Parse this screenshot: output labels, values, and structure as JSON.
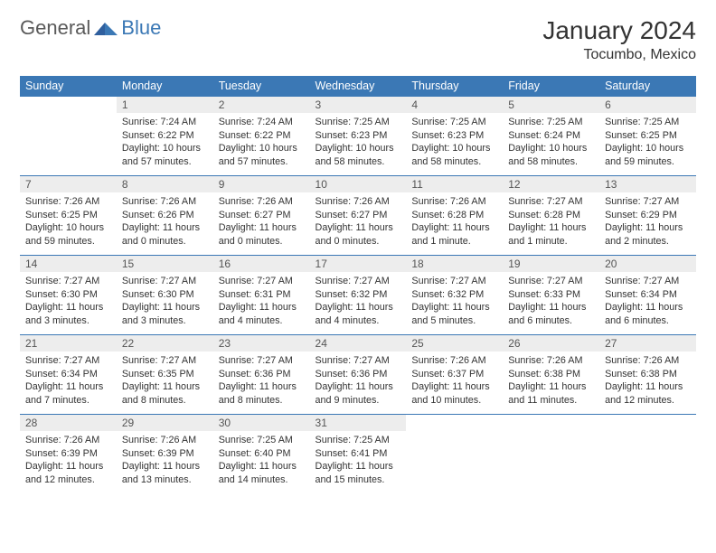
{
  "brand": {
    "text1": "General",
    "text2": "Blue"
  },
  "title": "January 2024",
  "location": "Tocumbo, Mexico",
  "colors": {
    "header_bg": "#3b78b5",
    "header_text": "#ffffff",
    "daynum_bg": "#ededed",
    "daynum_text": "#555555",
    "body_text": "#333333",
    "rule": "#3b78b5",
    "brand_gray": "#5a5a5a",
    "brand_blue": "#3b78b5"
  },
  "fonts": {
    "title_size": 28,
    "location_size": 16,
    "header_size": 12.5,
    "daynum_size": 12,
    "body_size": 10.8
  },
  "weekdays": [
    "Sunday",
    "Monday",
    "Tuesday",
    "Wednesday",
    "Thursday",
    "Friday",
    "Saturday"
  ],
  "weeks": [
    [
      null,
      {
        "n": "1",
        "sr": "7:24 AM",
        "ss": "6:22 PM",
        "dl": "10 hours and 57 minutes."
      },
      {
        "n": "2",
        "sr": "7:24 AM",
        "ss": "6:22 PM",
        "dl": "10 hours and 57 minutes."
      },
      {
        "n": "3",
        "sr": "7:25 AM",
        "ss": "6:23 PM",
        "dl": "10 hours and 58 minutes."
      },
      {
        "n": "4",
        "sr": "7:25 AM",
        "ss": "6:23 PM",
        "dl": "10 hours and 58 minutes."
      },
      {
        "n": "5",
        "sr": "7:25 AM",
        "ss": "6:24 PM",
        "dl": "10 hours and 58 minutes."
      },
      {
        "n": "6",
        "sr": "7:25 AM",
        "ss": "6:25 PM",
        "dl": "10 hours and 59 minutes."
      }
    ],
    [
      {
        "n": "7",
        "sr": "7:26 AM",
        "ss": "6:25 PM",
        "dl": "10 hours and 59 minutes."
      },
      {
        "n": "8",
        "sr": "7:26 AM",
        "ss": "6:26 PM",
        "dl": "11 hours and 0 minutes."
      },
      {
        "n": "9",
        "sr": "7:26 AM",
        "ss": "6:27 PM",
        "dl": "11 hours and 0 minutes."
      },
      {
        "n": "10",
        "sr": "7:26 AM",
        "ss": "6:27 PM",
        "dl": "11 hours and 0 minutes."
      },
      {
        "n": "11",
        "sr": "7:26 AM",
        "ss": "6:28 PM",
        "dl": "11 hours and 1 minute."
      },
      {
        "n": "12",
        "sr": "7:27 AM",
        "ss": "6:28 PM",
        "dl": "11 hours and 1 minute."
      },
      {
        "n": "13",
        "sr": "7:27 AM",
        "ss": "6:29 PM",
        "dl": "11 hours and 2 minutes."
      }
    ],
    [
      {
        "n": "14",
        "sr": "7:27 AM",
        "ss": "6:30 PM",
        "dl": "11 hours and 3 minutes."
      },
      {
        "n": "15",
        "sr": "7:27 AM",
        "ss": "6:30 PM",
        "dl": "11 hours and 3 minutes."
      },
      {
        "n": "16",
        "sr": "7:27 AM",
        "ss": "6:31 PM",
        "dl": "11 hours and 4 minutes."
      },
      {
        "n": "17",
        "sr": "7:27 AM",
        "ss": "6:32 PM",
        "dl": "11 hours and 4 minutes."
      },
      {
        "n": "18",
        "sr": "7:27 AM",
        "ss": "6:32 PM",
        "dl": "11 hours and 5 minutes."
      },
      {
        "n": "19",
        "sr": "7:27 AM",
        "ss": "6:33 PM",
        "dl": "11 hours and 6 minutes."
      },
      {
        "n": "20",
        "sr": "7:27 AM",
        "ss": "6:34 PM",
        "dl": "11 hours and 6 minutes."
      }
    ],
    [
      {
        "n": "21",
        "sr": "7:27 AM",
        "ss": "6:34 PM",
        "dl": "11 hours and 7 minutes."
      },
      {
        "n": "22",
        "sr": "7:27 AM",
        "ss": "6:35 PM",
        "dl": "11 hours and 8 minutes."
      },
      {
        "n": "23",
        "sr": "7:27 AM",
        "ss": "6:36 PM",
        "dl": "11 hours and 8 minutes."
      },
      {
        "n": "24",
        "sr": "7:27 AM",
        "ss": "6:36 PM",
        "dl": "11 hours and 9 minutes."
      },
      {
        "n": "25",
        "sr": "7:26 AM",
        "ss": "6:37 PM",
        "dl": "11 hours and 10 minutes."
      },
      {
        "n": "26",
        "sr": "7:26 AM",
        "ss": "6:38 PM",
        "dl": "11 hours and 11 minutes."
      },
      {
        "n": "27",
        "sr": "7:26 AM",
        "ss": "6:38 PM",
        "dl": "11 hours and 12 minutes."
      }
    ],
    [
      {
        "n": "28",
        "sr": "7:26 AM",
        "ss": "6:39 PM",
        "dl": "11 hours and 12 minutes."
      },
      {
        "n": "29",
        "sr": "7:26 AM",
        "ss": "6:39 PM",
        "dl": "11 hours and 13 minutes."
      },
      {
        "n": "30",
        "sr": "7:25 AM",
        "ss": "6:40 PM",
        "dl": "11 hours and 14 minutes."
      },
      {
        "n": "31",
        "sr": "7:25 AM",
        "ss": "6:41 PM",
        "dl": "11 hours and 15 minutes."
      },
      null,
      null,
      null
    ]
  ],
  "labels": {
    "sunrise": "Sunrise: ",
    "sunset": "Sunset: ",
    "daylight": "Daylight: "
  }
}
